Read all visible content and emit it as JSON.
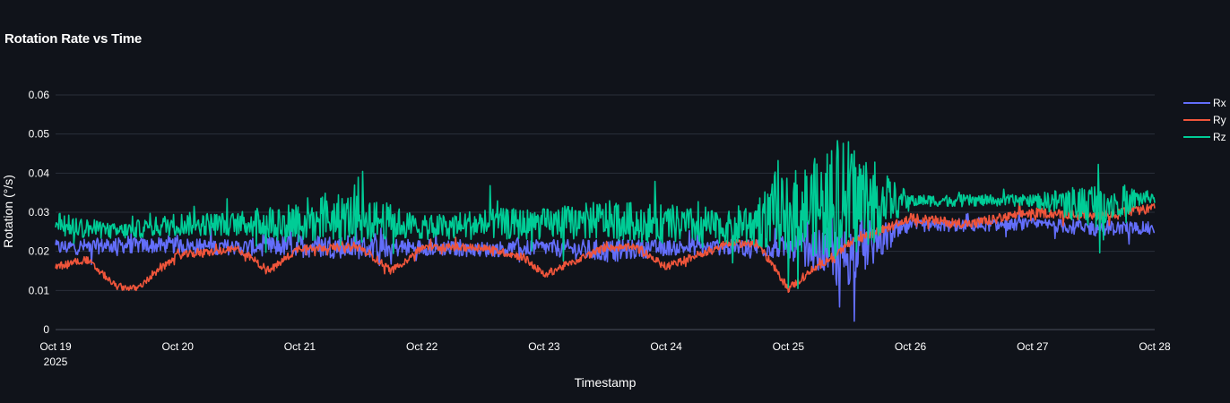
{
  "chart_data": {
    "type": "line",
    "title": "Rotation Rate vs Time",
    "xlabel": "Timestamp",
    "ylabel": "Rotation (°/s)",
    "ylim": [
      0,
      0.06
    ],
    "y_ticks": [
      0,
      0.01,
      0.02,
      0.03,
      0.04,
      0.05,
      0.06
    ],
    "y_tick_labels": [
      "0",
      "0.01",
      "0.02",
      "0.03",
      "0.04",
      "0.05",
      "0.06"
    ],
    "xlim": [
      "2025-10-19",
      "2025-10-28"
    ],
    "x_ticks": [
      "2025-10-19",
      "2025-10-20",
      "2025-10-21",
      "2025-10-22",
      "2025-10-23",
      "2025-10-24",
      "2025-10-25",
      "2025-10-26",
      "2025-10-27",
      "2025-10-28"
    ],
    "x_tick_labels": [
      "Oct 19",
      "Oct 20",
      "Oct 21",
      "Oct 22",
      "Oct 23",
      "Oct 24",
      "Oct 25",
      "Oct 26",
      "Oct 27",
      "Oct 28"
    ],
    "x_tick_sublabel": "2025",
    "grid": "horizontal",
    "legend": "top-right",
    "background": "#10131a",
    "series": [
      {
        "name": "Rx",
        "color": "#636efa",
        "x": [
          "2025-10-19T00:00",
          "2025-10-19T12:00",
          "2025-10-20T00:00",
          "2025-10-20T12:00",
          "2025-10-21T00:00",
          "2025-10-21T12:00",
          "2025-10-22T00:00",
          "2025-10-22T12:00",
          "2025-10-23T00:00",
          "2025-10-23T12:00",
          "2025-10-24T00:00",
          "2025-10-24T12:00",
          "2025-10-25T00:00",
          "2025-10-25T12:00",
          "2025-10-26T00:00",
          "2025-10-26T12:00",
          "2025-10-27T00:00",
          "2025-10-27T12:00",
          "2025-10-28T00:00"
        ],
        "center": [
          0.021,
          0.0215,
          0.0215,
          0.021,
          0.0215,
          0.021,
          0.021,
          0.0205,
          0.021,
          0.02,
          0.021,
          0.021,
          0.021,
          0.019,
          0.0265,
          0.0265,
          0.027,
          0.026,
          0.026
        ],
        "spread": [
          0.002,
          0.002,
          0.002,
          0.002,
          0.003,
          0.003,
          0.002,
          0.002,
          0.002,
          0.003,
          0.002,
          0.002,
          0.003,
          0.008,
          0.0015,
          0.0015,
          0.0015,
          0.002,
          0.0015
        ]
      },
      {
        "name": "Ry",
        "color": "#ef553b",
        "x": [
          "2025-10-19T00:00",
          "2025-10-19T06:00",
          "2025-10-19T12:00",
          "2025-10-19T16:00",
          "2025-10-20T00:00",
          "2025-10-20T12:00",
          "2025-10-20T18:00",
          "2025-10-21T00:00",
          "2025-10-21T12:00",
          "2025-10-21T18:00",
          "2025-10-22T00:00",
          "2025-10-22T12:00",
          "2025-10-22T20:00",
          "2025-10-23T00:00",
          "2025-10-23T12:00",
          "2025-10-23T18:00",
          "2025-10-24T00:00",
          "2025-10-24T12:00",
          "2025-10-24T18:00",
          "2025-10-25T00:00",
          "2025-10-25T12:00",
          "2025-10-26T00:00",
          "2025-10-26T12:00",
          "2025-10-27T00:00",
          "2025-10-27T12:00",
          "2025-10-28T00:00"
        ],
        "center": [
          0.016,
          0.018,
          0.011,
          0.0105,
          0.019,
          0.0205,
          0.015,
          0.021,
          0.021,
          0.015,
          0.021,
          0.021,
          0.0185,
          0.014,
          0.021,
          0.021,
          0.016,
          0.022,
          0.022,
          0.0105,
          0.022,
          0.0285,
          0.027,
          0.03,
          0.029,
          0.031
        ],
        "spread": [
          0.001,
          0.001,
          0.0008,
          0.0008,
          0.001,
          0.001,
          0.001,
          0.001,
          0.001,
          0.001,
          0.001,
          0.001,
          0.001,
          0.001,
          0.001,
          0.001,
          0.001,
          0.001,
          0.001,
          0.001,
          0.001,
          0.0012,
          0.0012,
          0.0012,
          0.0012,
          0.0012
        ]
      },
      {
        "name": "Rz",
        "color": "#00cc96",
        "x": [
          "2025-10-19T00:00",
          "2025-10-19T12:00",
          "2025-10-20T00:00",
          "2025-10-20T12:00",
          "2025-10-21T00:00",
          "2025-10-21T12:00",
          "2025-10-22T00:00",
          "2025-10-22T12:00",
          "2025-10-23T00:00",
          "2025-10-23T12:00",
          "2025-10-24T00:00",
          "2025-10-24T12:00",
          "2025-10-25T00:00",
          "2025-10-25T12:00",
          "2025-10-26T00:00",
          "2025-10-26T12:00",
          "2025-10-27T00:00",
          "2025-10-27T12:00",
          "2025-10-28T00:00"
        ],
        "center": [
          0.027,
          0.025,
          0.027,
          0.027,
          0.028,
          0.029,
          0.026,
          0.027,
          0.027,
          0.028,
          0.027,
          0.026,
          0.03,
          0.033,
          0.033,
          0.033,
          0.033,
          0.032,
          0.034
        ],
        "spread": [
          0.003,
          0.002,
          0.003,
          0.003,
          0.006,
          0.006,
          0.003,
          0.004,
          0.004,
          0.005,
          0.005,
          0.004,
          0.01,
          0.016,
          0.0015,
          0.0015,
          0.0015,
          0.006,
          0.0012
        ]
      }
    ]
  }
}
